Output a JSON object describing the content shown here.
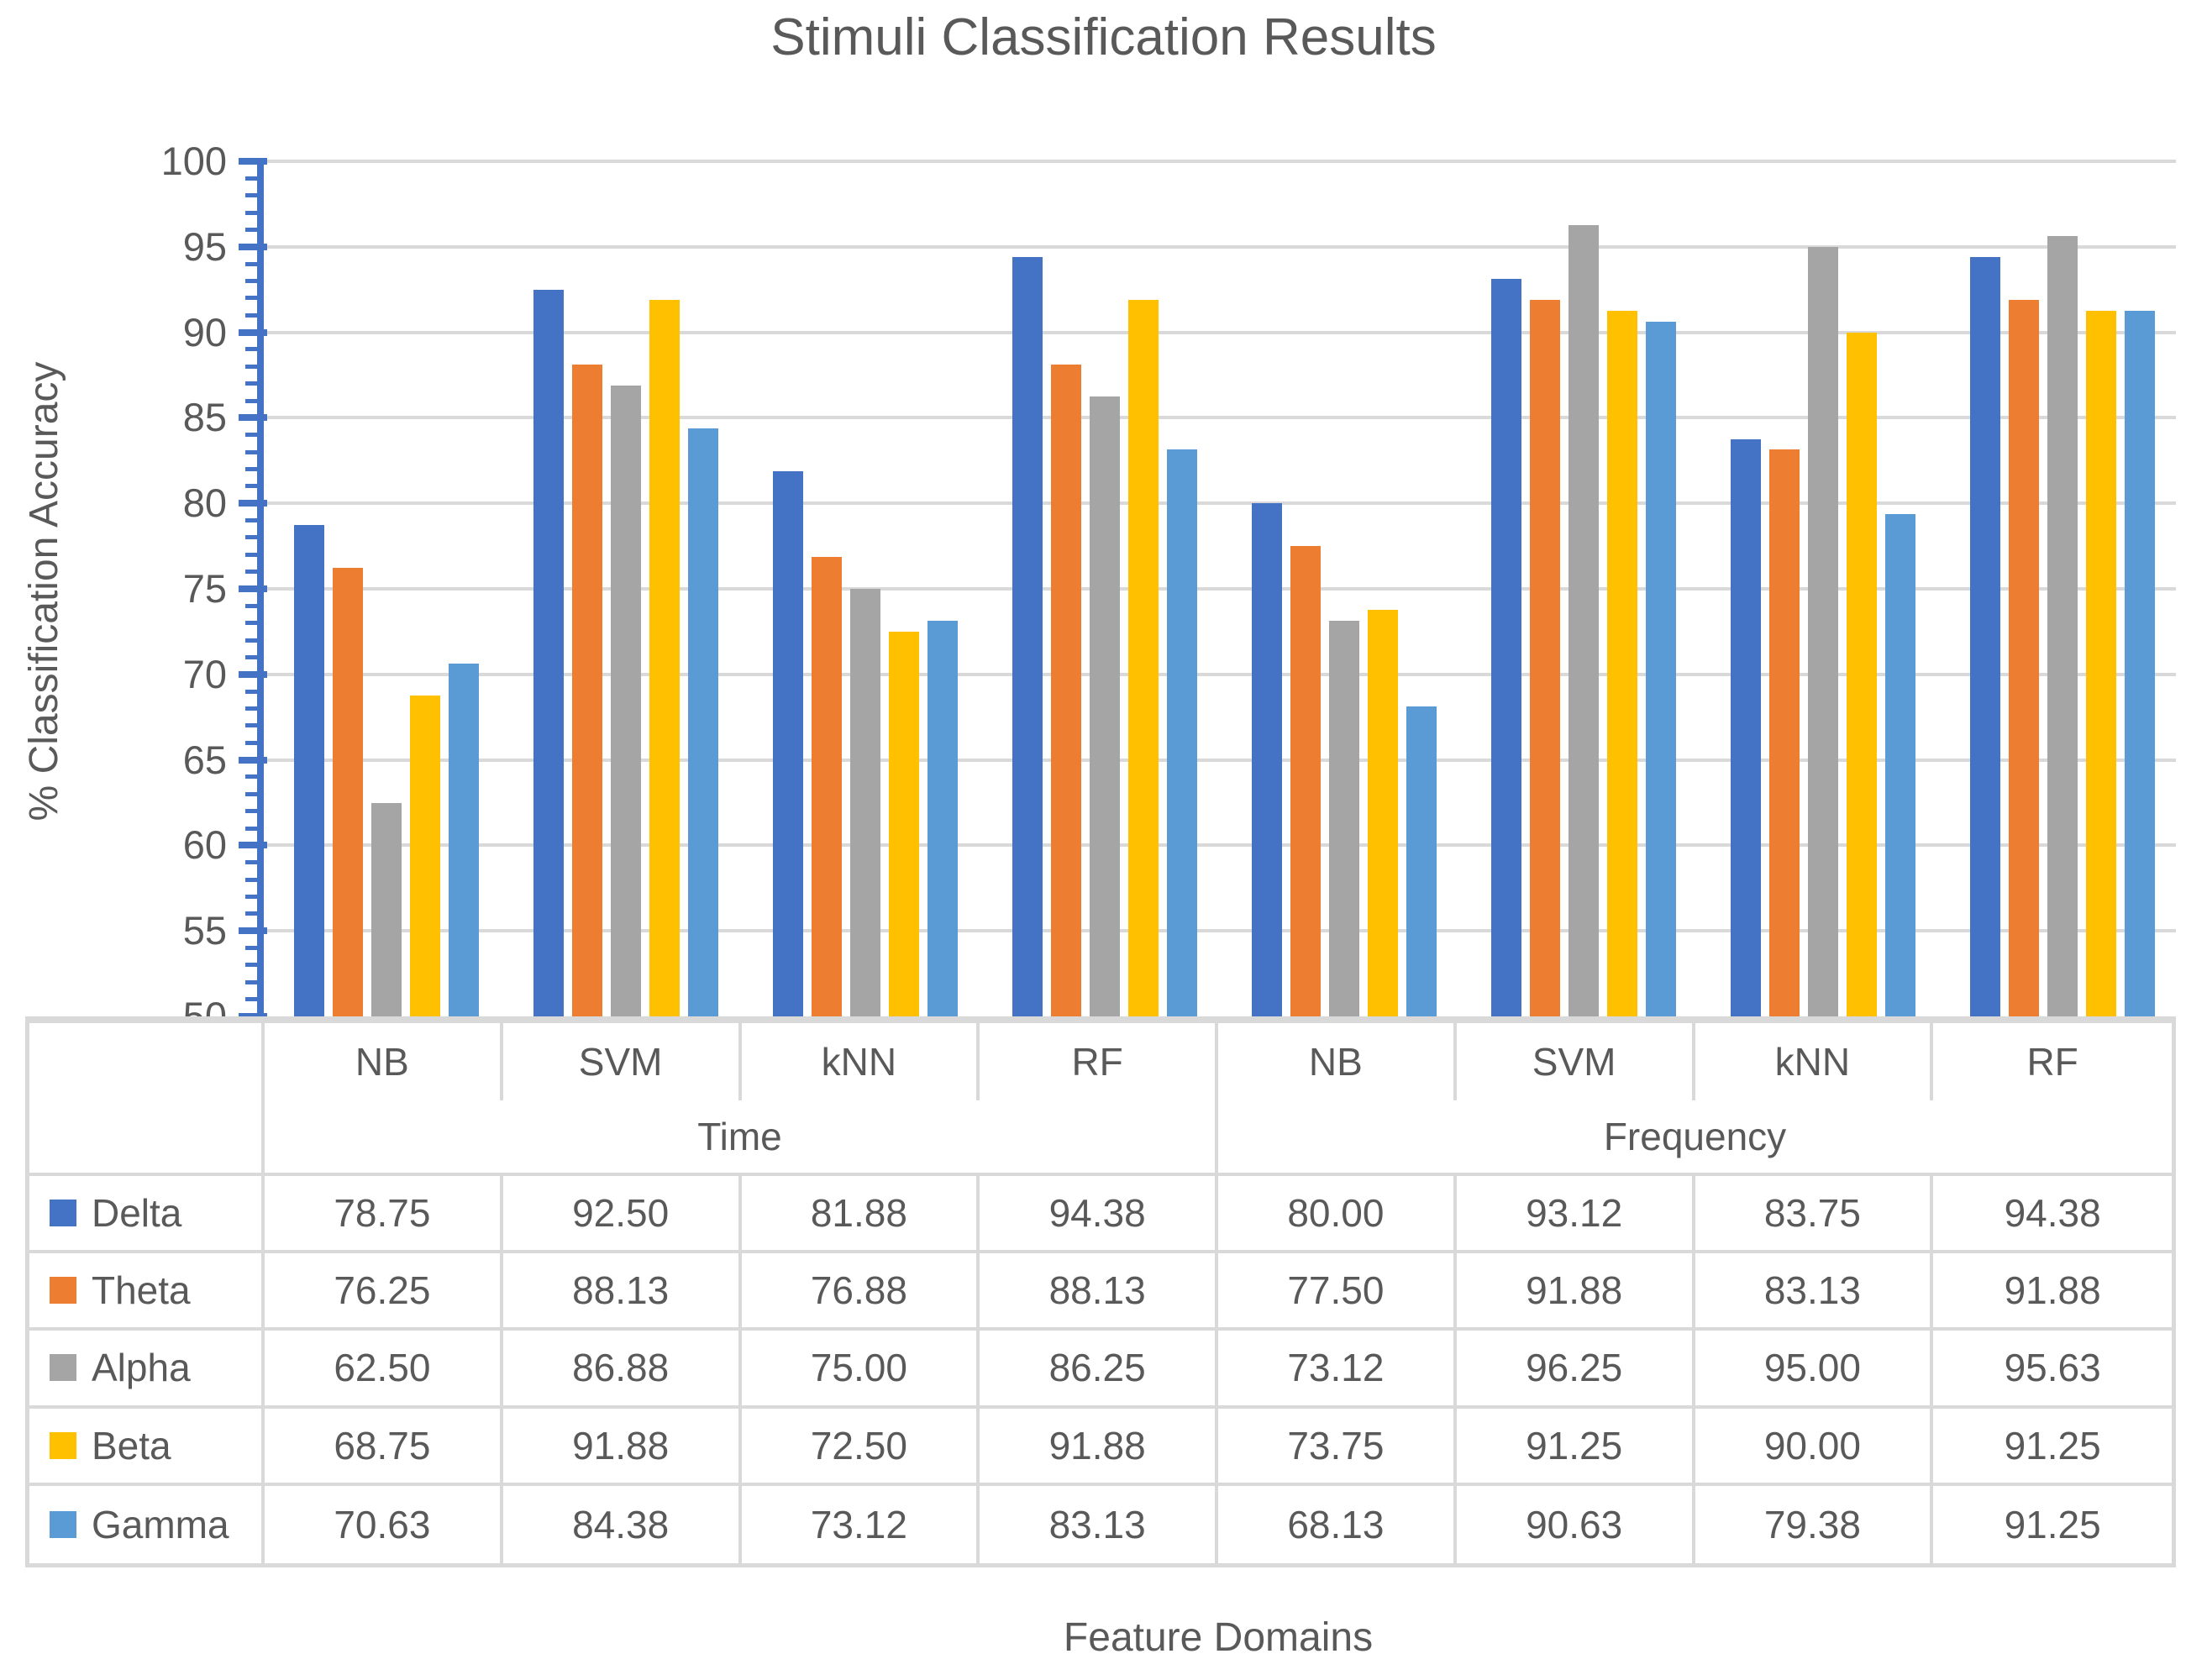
{
  "chart_data": {
    "type": "bar",
    "title": "Stimuli Classification Results",
    "ylabel": "% Classification Accuracy",
    "xlabel": "Feature Domains",
    "ylim": [
      50,
      100
    ],
    "ymajor_step": 5,
    "yminor_step": 1,
    "grid": true,
    "legend_position": "data-table-left",
    "axis_color": "#4472C4",
    "grid_color": "#D9D9D9",
    "text_color": "#595959",
    "domains": [
      {
        "label": "Time",
        "categories": [
          "NB",
          "SVM",
          "kNN",
          "RF"
        ]
      },
      {
        "label": "Frequency",
        "categories": [
          "NB",
          "SVM",
          "kNN",
          "RF"
        ]
      }
    ],
    "series": [
      {
        "name": "Delta",
        "color": "#4472C4",
        "values": [
          78.75,
          92.5,
          81.88,
          94.38,
          80.0,
          93.12,
          83.75,
          94.38
        ]
      },
      {
        "name": "Theta",
        "color": "#ED7D31",
        "values": [
          76.25,
          88.13,
          76.88,
          88.13,
          77.5,
          91.88,
          83.13,
          91.88
        ]
      },
      {
        "name": "Alpha",
        "color": "#A5A5A5",
        "values": [
          62.5,
          86.88,
          75.0,
          86.25,
          73.12,
          96.25,
          95.0,
          95.63
        ]
      },
      {
        "name": "Beta",
        "color": "#FFC000",
        "values": [
          68.75,
          91.88,
          72.5,
          91.88,
          73.75,
          91.25,
          90.0,
          91.25
        ]
      },
      {
        "name": "Gamma",
        "color": "#5B9BD5",
        "values": [
          70.63,
          84.38,
          73.12,
          83.13,
          68.13,
          90.63,
          79.38,
          91.25
        ]
      }
    ]
  }
}
